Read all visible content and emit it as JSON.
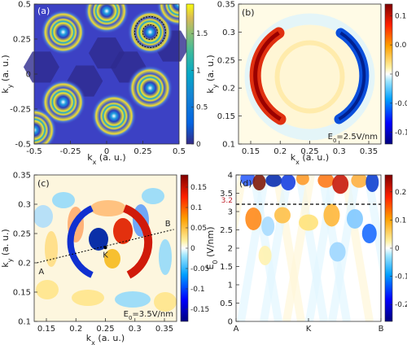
{
  "chart_data": [
    {
      "panel": "(a)",
      "type": "heatmap",
      "xlabel": "k_x (a. u.)",
      "ylabel": "k_y (a. u.)",
      "xlim": [
        -0.5,
        0.5
      ],
      "ylim": [
        -0.5,
        0.5
      ],
      "xticks": [
        "-0.5",
        "-0.25",
        "0",
        "0.25",
        "0.5"
      ],
      "yticks": [
        "-0.5",
        "-0.25",
        "0",
        "0.25",
        "0.5"
      ],
      "colorbar": {
        "range": [
          0,
          1.9
        ],
        "ticks": [
          "0",
          "0.5",
          "1",
          "1.5"
        ],
        "colormap": "parula"
      },
      "ring_centers_kxky": [
        [
          -0.3,
          0.3
        ],
        [
          0.0,
          0.45
        ],
        [
          0.3,
          0.3
        ],
        [
          -0.3,
          -0.2
        ],
        [
          0.3,
          -0.1
        ],
        [
          0.05,
          -0.3
        ],
        [
          -0.5,
          -0.4
        ],
        [
          0.5,
          0.5
        ]
      ],
      "annotation": "dashed circle around ring at (0.3, 0.3)"
    },
    {
      "panel": "(b)",
      "type": "heatmap",
      "xlabel": "k_x (a. u.)",
      "ylabel": "k_y (a. u.)",
      "xlim": [
        0.12,
        0.38
      ],
      "ylim": [
        0.1,
        0.35
      ],
      "xticks": [
        "0.15",
        "0.2",
        "0.25",
        "0.3",
        "0.35"
      ],
      "yticks": [
        "0.1",
        "0.15",
        "0.2",
        "0.25",
        "0.3",
        "0.35"
      ],
      "colorbar": {
        "range": [
          -0.12,
          0.12
        ],
        "ticks": [
          "0.1",
          "0.05",
          "0",
          "-0.05",
          "-0.1"
        ],
        "colormap": "jet"
      },
      "annotation": "E_0=2.5V/nm"
    },
    {
      "panel": "(c)",
      "type": "heatmap",
      "xlabel": "k_x (a. u.)",
      "ylabel": "k_y (a. u.)",
      "xlim": [
        0.12,
        0.38
      ],
      "ylim": [
        0.1,
        0.35
      ],
      "xticks": [
        "0.15",
        "0.2",
        "0.25",
        "0.3",
        "0.35"
      ],
      "yticks": [
        "0.1",
        "0.15",
        "0.2",
        "0.25",
        "0.3",
        "0.35"
      ],
      "colorbar": {
        "range": [
          -0.18,
          0.18
        ],
        "ticks": [
          "0.15",
          "0.1",
          "0.05",
          "0",
          "-0.05",
          "-0.1",
          "-0.15"
        ],
        "colormap": "jet"
      },
      "annotation": "E_0=3.5V/nm",
      "path_points": {
        "A": [
          0.125,
          0.2
        ],
        "K": [
          0.25,
          0.226
        ],
        "B": [
          0.375,
          0.257
        ]
      }
    },
    {
      "panel": "(d)",
      "type": "heatmap",
      "xlabel": "",
      "ylabel": "E_0 (V/nm)",
      "ylim": [
        0,
        4
      ],
      "xticks": [
        "A",
        "K",
        "B"
      ],
      "yticks": [
        "0",
        "0.5",
        "1",
        "1.5",
        "2",
        "2.5",
        "3",
        "3.5",
        "4"
      ],
      "colorbar": {
        "range": [
          -0.26,
          0.26
        ],
        "ticks": [
          "0.2",
          "0.1",
          "0",
          "-0.1",
          "-0.2"
        ],
        "colormap": "jet"
      },
      "hline": {
        "y": 3.2,
        "label": "3.2",
        "style": "dashed"
      }
    }
  ]
}
